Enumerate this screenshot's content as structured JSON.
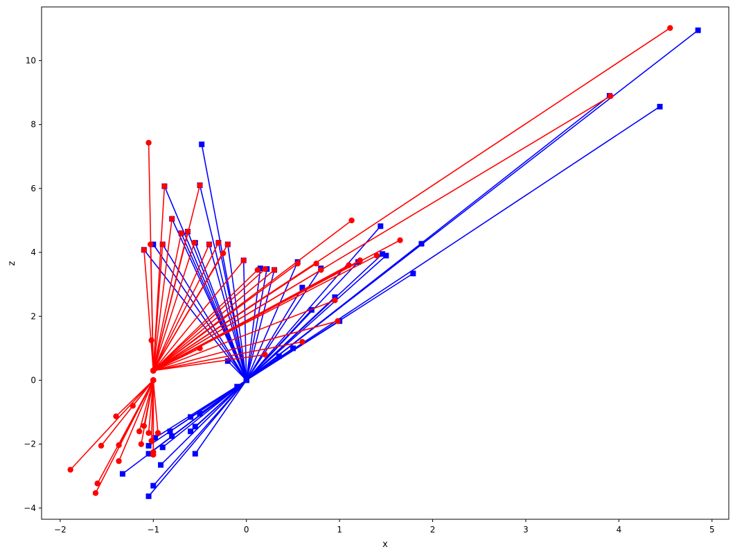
{
  "chart_data": {
    "type": "line",
    "title": "",
    "xlabel": "x",
    "ylabel": "z",
    "xlim": [
      -2.2,
      5.18
    ],
    "ylim": [
      -4.35,
      11.68
    ],
    "xticks": [
      -2,
      -1,
      0,
      1,
      2,
      3,
      4,
      5
    ],
    "yticks": [
      -4,
      -2,
      0,
      2,
      4,
      6,
      8,
      10
    ],
    "grid": false,
    "legend": null,
    "colors": {
      "blue_series": "#0000ff",
      "red_series": "#ff0000"
    },
    "series": [
      {
        "color": "#0000ff",
        "marker": "square",
        "segments": [
          {
            "x": [
              0,
              4.85
            ],
            "y": [
              0,
              10.95
            ]
          },
          {
            "x": [
              0,
              3.9
            ],
            "y": [
              0,
              8.9
            ]
          },
          {
            "x": [
              0,
              4.44
            ],
            "y": [
              0,
              8.56
            ]
          },
          {
            "x": [
              0,
              1.88
            ],
            "y": [
              0,
              4.27
            ]
          },
          {
            "x": [
              0,
              1.79
            ],
            "y": [
              0,
              3.34
            ]
          },
          {
            "x": [
              0,
              1.44
            ],
            "y": [
              0,
              4.82
            ]
          },
          {
            "x": [
              0,
              1.5
            ],
            "y": [
              0,
              3.9
            ]
          },
          {
            "x": [
              0,
              1.46
            ],
            "y": [
              0,
              3.95
            ]
          },
          {
            "x": [
              0,
              1.2
            ],
            "y": [
              0,
              3.7
            ]
          },
          {
            "x": [
              0,
              1.0
            ],
            "y": [
              0,
              1.85
            ]
          },
          {
            "x": [
              0,
              0.95
            ],
            "y": [
              0,
              2.6
            ]
          },
          {
            "x": [
              0,
              0.8
            ],
            "y": [
              0,
              3.5
            ]
          },
          {
            "x": [
              0,
              0.55
            ],
            "y": [
              0,
              3.7
            ]
          },
          {
            "x": [
              0,
              0.6
            ],
            "y": [
              0,
              2.9
            ]
          },
          {
            "x": [
              0,
              0.7
            ],
            "y": [
              0,
              2.2
            ]
          },
          {
            "x": [
              0,
              0.5
            ],
            "y": [
              0,
              1.0
            ]
          },
          {
            "x": [
              0,
              0.35
            ],
            "y": [
              0,
              0.75
            ]
          },
          {
            "x": [
              0,
              0.3
            ],
            "y": [
              0,
              3.45
            ]
          },
          {
            "x": [
              0,
              0.22
            ],
            "y": [
              0,
              3.48
            ]
          },
          {
            "x": [
              0,
              0.15
            ],
            "y": [
              0,
              3.5
            ]
          },
          {
            "x": [
              0,
              -0.03
            ],
            "y": [
              0,
              3.75
            ]
          },
          {
            "x": [
              0,
              -0.2
            ],
            "y": [
              0,
              4.25
            ]
          },
          {
            "x": [
              0,
              -0.3
            ],
            "y": [
              0,
              4.3
            ]
          },
          {
            "x": [
              0,
              -0.4
            ],
            "y": [
              0,
              4.25
            ]
          },
          {
            "x": [
              0,
              -0.48
            ],
            "y": [
              0,
              7.38
            ]
          },
          {
            "x": [
              0,
              -0.5
            ],
            "y": [
              0,
              6.1
            ]
          },
          {
            "x": [
              0,
              -0.55
            ],
            "y": [
              0,
              4.3
            ]
          },
          {
            "x": [
              0,
              -0.63
            ],
            "y": [
              0,
              4.65
            ]
          },
          {
            "x": [
              0,
              -0.7
            ],
            "y": [
              0,
              4.6
            ]
          },
          {
            "x": [
              0,
              -0.8
            ],
            "y": [
              0,
              5.05
            ]
          },
          {
            "x": [
              0,
              -0.88
            ],
            "y": [
              0,
              6.07
            ]
          },
          {
            "x": [
              0,
              -0.9
            ],
            "y": [
              0,
              4.25
            ]
          },
          {
            "x": [
              0,
              -1.0
            ],
            "y": [
              0,
              4.25
            ]
          },
          {
            "x": [
              0,
              -1.1
            ],
            "y": [
              0,
              4.08
            ]
          },
          {
            "x": [
              0,
              -0.2
            ],
            "y": [
              0,
              0.6
            ]
          },
          {
            "x": [
              0,
              -0.1
            ],
            "y": [
              0,
              -0.2
            ]
          },
          {
            "x": [
              0,
              -0.5
            ],
            "y": [
              0,
              -1.05
            ]
          },
          {
            "x": [
              0,
              -0.55
            ],
            "y": [
              0,
              -1.45
            ]
          },
          {
            "x": [
              0,
              -0.6
            ],
            "y": [
              0,
              -1.6
            ]
          },
          {
            "x": [
              0,
              -0.6
            ],
            "y": [
              0,
              -1.15
            ]
          },
          {
            "x": [
              0,
              -0.8
            ],
            "y": [
              0,
              -1.75
            ]
          },
          {
            "x": [
              0,
              -0.82
            ],
            "y": [
              0,
              -1.6
            ]
          },
          {
            "x": [
              0,
              -0.9
            ],
            "y": [
              0,
              -2.1
            ]
          },
          {
            "x": [
              0,
              -0.92
            ],
            "y": [
              0,
              -2.65
            ]
          },
          {
            "x": [
              0,
              -0.98
            ],
            "y": [
              0,
              -1.8
            ]
          },
          {
            "x": [
              0,
              -1.0
            ],
            "y": [
              0,
              -3.3
            ]
          },
          {
            "x": [
              0,
              -1.05
            ],
            "y": [
              0,
              -2.05
            ]
          },
          {
            "x": [
              0,
              -1.05
            ],
            "y": [
              0,
              -2.3
            ]
          },
          {
            "x": [
              0,
              -1.05
            ],
            "y": [
              0,
              -3.63
            ]
          },
          {
            "x": [
              0,
              -1.33
            ],
            "y": [
              0,
              -2.93
            ]
          },
          {
            "x": [
              0,
              -0.55
            ],
            "y": [
              0,
              -2.3
            ]
          }
        ]
      },
      {
        "color": "#ff0000",
        "marker": "circle",
        "segments": [
          {
            "x": [
              -1.0,
              4.55
            ],
            "y": [
              0.3,
              11.02
            ]
          },
          {
            "x": [
              -1.0,
              3.91
            ],
            "y": [
              0.3,
              8.89
            ]
          },
          {
            "x": [
              -1.0,
              1.65
            ],
            "y": [
              0.3,
              4.38
            ]
          },
          {
            "x": [
              -1.0,
              1.13
            ],
            "y": [
              0.3,
              5.0
            ]
          },
          {
            "x": [
              -1.0,
              1.4
            ],
            "y": [
              0.3,
              3.9
            ]
          },
          {
            "x": [
              -1.0,
              1.22
            ],
            "y": [
              0.3,
              3.75
            ]
          },
          {
            "x": [
              -1.0,
              1.1
            ],
            "y": [
              0.3,
              3.6
            ]
          },
          {
            "x": [
              -1.0,
              0.98
            ],
            "y": [
              0.3,
              1.85
            ]
          },
          {
            "x": [
              -1.0,
              0.95
            ],
            "y": [
              0.3,
              2.5
            ]
          },
          {
            "x": [
              -1.0,
              0.8
            ],
            "y": [
              0.3,
              3.45
            ]
          },
          {
            "x": [
              -1.0,
              0.75
            ],
            "y": [
              0.3,
              3.65
            ]
          },
          {
            "x": [
              -1.0,
              0.55
            ],
            "y": [
              0.3,
              3.65
            ]
          },
          {
            "x": [
              -1.0,
              0.6
            ],
            "y": [
              0.3,
              1.2
            ]
          },
          {
            "x": [
              -1.0,
              0.3
            ],
            "y": [
              0.3,
              3.45
            ]
          },
          {
            "x": [
              -1.0,
              0.2
            ],
            "y": [
              0.3,
              3.48
            ]
          },
          {
            "x": [
              -1.0,
              0.12
            ],
            "y": [
              0.3,
              3.45
            ]
          },
          {
            "x": [
              -1.0,
              -0.03
            ],
            "y": [
              0.3,
              3.75
            ]
          },
          {
            "x": [
              -1.0,
              0.2
            ],
            "y": [
              0.3,
              0.8
            ]
          },
          {
            "x": [
              -1.0,
              -0.2
            ],
            "y": [
              0.3,
              4.25
            ]
          },
          {
            "x": [
              -1.0,
              -0.25
            ],
            "y": [
              0.3,
              3.97
            ]
          },
          {
            "x": [
              -1.0,
              -0.3
            ],
            "y": [
              0.3,
              4.3
            ]
          },
          {
            "x": [
              -1.0,
              -0.4
            ],
            "y": [
              0.3,
              4.25
            ]
          },
          {
            "x": [
              -1.0,
              -0.5
            ],
            "y": [
              0.3,
              6.1
            ]
          },
          {
            "x": [
              -1.0,
              -0.56
            ],
            "y": [
              0.3,
              4.3
            ]
          },
          {
            "x": [
              -1.0,
              -0.63
            ],
            "y": [
              0.3,
              4.65
            ]
          },
          {
            "x": [
              -1.0,
              -0.7
            ],
            "y": [
              0.3,
              4.6
            ]
          },
          {
            "x": [
              -1.0,
              -0.8
            ],
            "y": [
              0.3,
              5.05
            ]
          },
          {
            "x": [
              -1.0,
              -0.88
            ],
            "y": [
              0.3,
              6.07
            ]
          },
          {
            "x": [
              -1.0,
              -0.9
            ],
            "y": [
              0.3,
              4.25
            ]
          },
          {
            "x": [
              -1.0,
              -1.03
            ],
            "y": [
              0.3,
              4.25
            ]
          },
          {
            "x": [
              -1.0,
              -1.1
            ],
            "y": [
              0.3,
              4.08
            ]
          },
          {
            "x": [
              -1.0,
              -1.05
            ],
            "y": [
              0.3,
              7.43
            ]
          },
          {
            "x": [
              -1.0,
              -1.02
            ],
            "y": [
              0.3,
              1.25
            ]
          },
          {
            "x": [
              -1.0,
              -0.5
            ],
            "y": [
              0.3,
              1.0
            ]
          },
          {
            "x": [
              -1.0,
              -1.89
            ],
            "y": [
              0.0,
              -2.8
            ]
          },
          {
            "x": [
              -1.0,
              -1.6
            ],
            "y": [
              0.0,
              -3.23
            ]
          },
          {
            "x": [
              -1.0,
              -1.62
            ],
            "y": [
              0.0,
              -3.53
            ]
          },
          {
            "x": [
              -1.0,
              -1.56
            ],
            "y": [
              0.0,
              -2.05
            ]
          },
          {
            "x": [
              -1.0,
              -1.4
            ],
            "y": [
              0.0,
              -1.13
            ]
          },
          {
            "x": [
              -1.0,
              -1.37
            ],
            "y": [
              0.0,
              -2.03
            ]
          },
          {
            "x": [
              -1.0,
              -1.37
            ],
            "y": [
              0.0,
              -2.53
            ]
          },
          {
            "x": [
              -1.0,
              -1.22
            ],
            "y": [
              0.0,
              -0.8
            ]
          },
          {
            "x": [
              -1.0,
              -1.15
            ],
            "y": [
              0.0,
              -1.6
            ]
          },
          {
            "x": [
              -1.0,
              -1.13
            ],
            "y": [
              0.0,
              -2.0
            ]
          },
          {
            "x": [
              -1.0,
              -1.1
            ],
            "y": [
              0.0,
              -1.43
            ]
          },
          {
            "x": [
              -1.0,
              -1.05
            ],
            "y": [
              0.0,
              -1.65
            ]
          },
          {
            "x": [
              -1.0,
              -1.02
            ],
            "y": [
              0.0,
              -1.9
            ]
          },
          {
            "x": [
              -1.0,
              -1.0
            ],
            "y": [
              0.0,
              -2.25
            ]
          },
          {
            "x": [
              -1.0,
              -1.0
            ],
            "y": [
              0.0,
              -2.33
            ]
          },
          {
            "x": [
              -1.0,
              -0.95
            ],
            "y": [
              0.0,
              -1.65
            ]
          }
        ]
      }
    ]
  }
}
